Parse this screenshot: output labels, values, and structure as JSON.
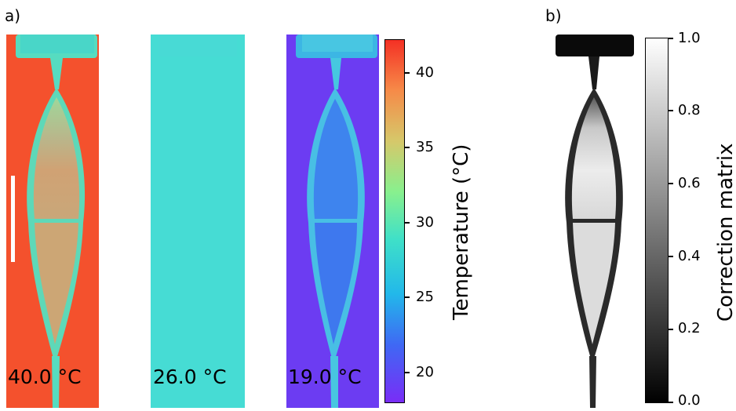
{
  "panel_a": {
    "label": "a)",
    "images": [
      {
        "temperature_label": "40.0 °C",
        "style": "hot-sample-on-red-background"
      },
      {
        "temperature_label": "26.0 °C",
        "style": "uniform-cyan"
      },
      {
        "temperature_label": "19.0 °C",
        "style": "cold-sample-on-violet-background"
      }
    ],
    "scale_bar_color": "#ffffff",
    "colorbar": {
      "title": "Temperature (°C)",
      "colormap": "rainbow",
      "ticks": [
        "20",
        "25",
        "30",
        "35",
        "40"
      ],
      "range": [
        17.8,
        42.1
      ]
    }
  },
  "panel_b": {
    "label": "b)",
    "image_style": "grayscale-correction-matrix",
    "colorbar": {
      "title": "Correction matrix",
      "colormap": "gray",
      "ticks": [
        "0.0",
        "0.2",
        "0.4",
        "0.6",
        "0.8",
        "1.0"
      ],
      "range": [
        0.0,
        1.0
      ]
    }
  },
  "colors": {
    "hot_background": "#f4512d",
    "hot_sample": "#b8b07a",
    "neutral": "#46dcd4",
    "cold_background": "#6c3cf2",
    "cold_sample": "#3e82ee"
  }
}
